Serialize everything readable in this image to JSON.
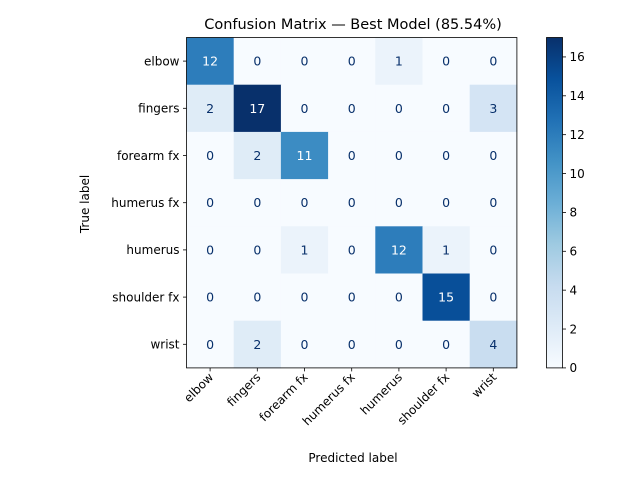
{
  "chart_data": {
    "type": "heatmap",
    "title": "Confusion Matrix — Best Model (85.54%)",
    "xlabel": "Predicted label",
    "ylabel": "True label",
    "x_categories": [
      "elbow",
      "fingers",
      "forearm fx",
      "humerus fx",
      "humerus",
      "shoulder fx",
      "wrist"
    ],
    "y_categories": [
      "elbow",
      "fingers",
      "forearm fx",
      "humerus fx",
      "humerus",
      "shoulder fx",
      "wrist"
    ],
    "matrix": [
      [
        12,
        0,
        0,
        0,
        1,
        0,
        0
      ],
      [
        2,
        17,
        0,
        0,
        0,
        0,
        3
      ],
      [
        0,
        2,
        11,
        0,
        0,
        0,
        0
      ],
      [
        0,
        0,
        0,
        0,
        0,
        0,
        0
      ],
      [
        0,
        0,
        1,
        0,
        12,
        1,
        0
      ],
      [
        0,
        0,
        0,
        0,
        0,
        15,
        0
      ],
      [
        0,
        2,
        0,
        0,
        0,
        0,
        4
      ]
    ],
    "colormap": "Blues",
    "value_range": [
      0,
      17
    ],
    "colorbar_ticks": [
      0,
      2,
      4,
      6,
      8,
      10,
      12,
      14,
      16
    ],
    "colorbar_ticks_text": [
      "0",
      "2",
      "4",
      "6",
      "8",
      "10",
      "12",
      "14",
      "16"
    ],
    "text_color_light": "#ffffff",
    "text_color_dark": "#08306b"
  }
}
